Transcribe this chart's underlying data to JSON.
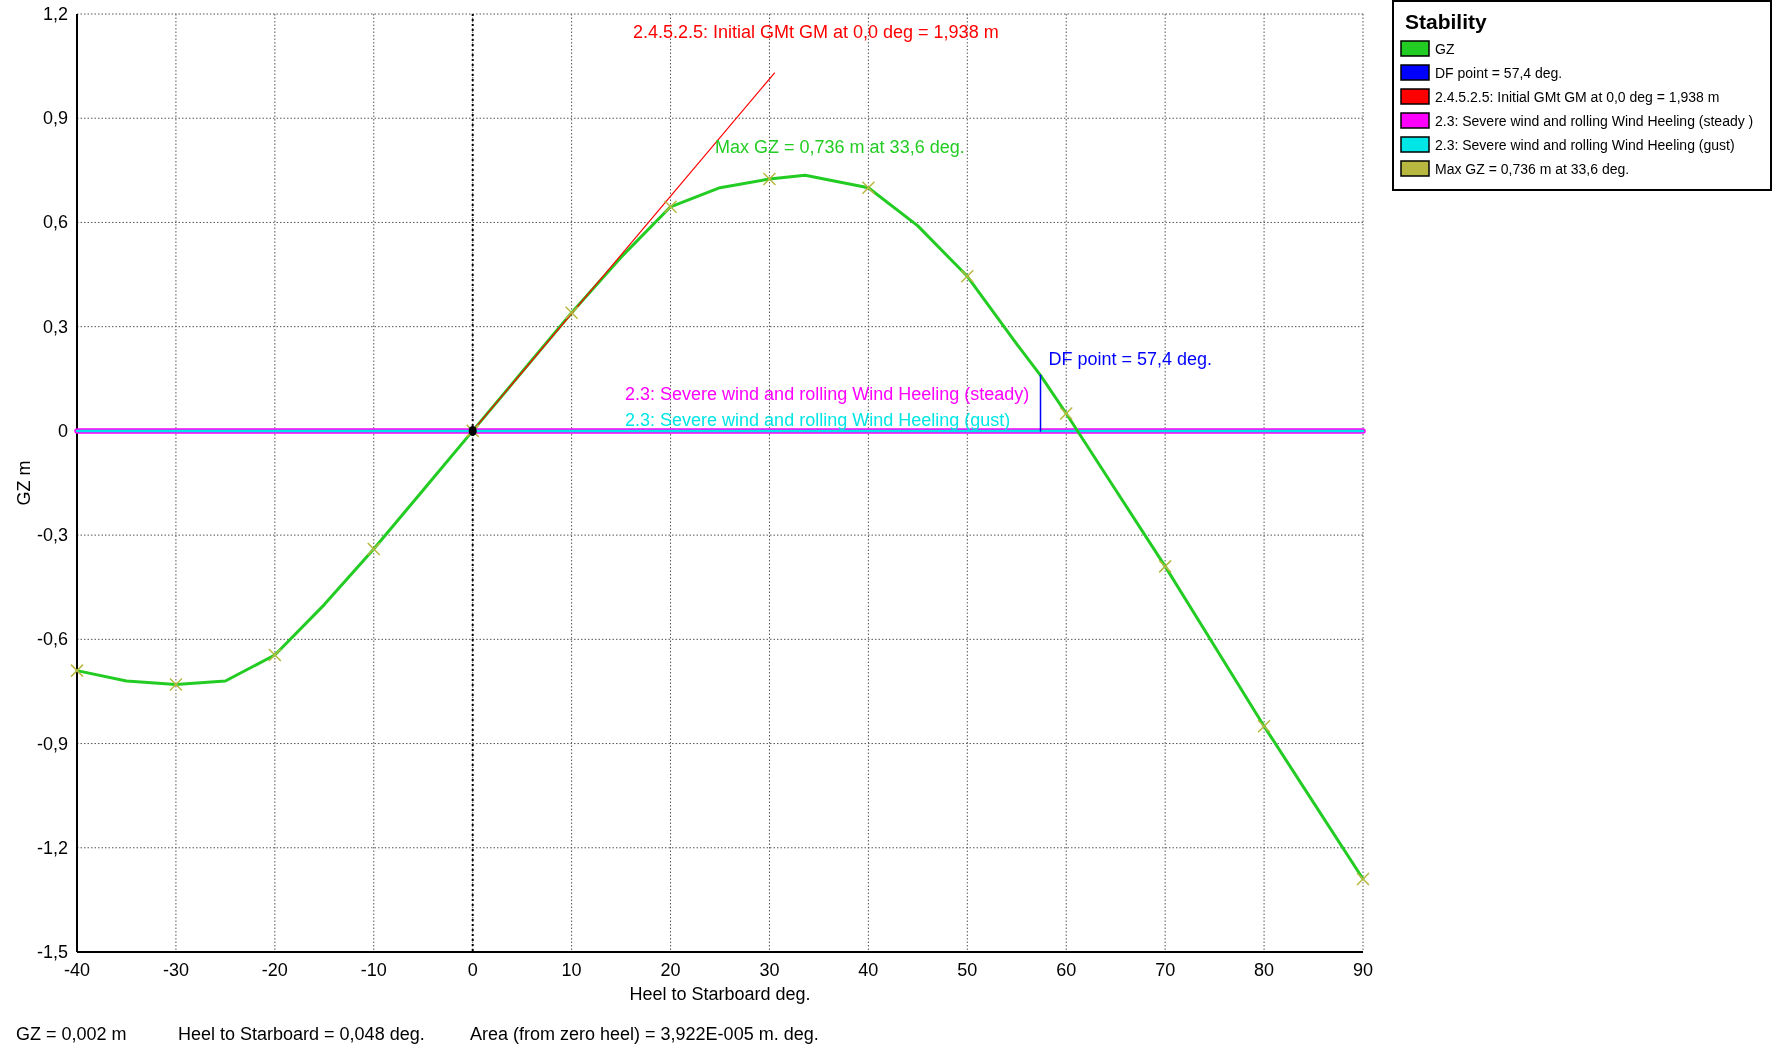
{
  "chart_data": {
    "type": "line",
    "xlabel": "Heel to Starboard   deg.",
    "ylabel": "GZ  m",
    "legend_title": "Stability",
    "xlim": [
      -40,
      90
    ],
    "xticks": [
      -40,
      -30,
      -20,
      -10,
      0,
      10,
      20,
      30,
      40,
      50,
      60,
      70,
      80,
      90
    ],
    "ylim": [
      -1.5,
      1.2
    ],
    "yticks": [
      {
        "value": -1.5,
        "label": "-1,5"
      },
      {
        "value": -1.2,
        "label": "-1,2"
      },
      {
        "value": -0.9,
        "label": "-0,9"
      },
      {
        "value": -0.6,
        "label": "-0,6"
      },
      {
        "value": -0.3,
        "label": "-0,3"
      },
      0,
      {
        "value": 0.3,
        "label": "0,3"
      },
      {
        "value": 0.6,
        "label": "0,6"
      },
      {
        "value": 0.9,
        "label": "0,9"
      },
      {
        "value": 1.2,
        "label": "1,2"
      }
    ],
    "grid": true,
    "legend": "top right",
    "series": [
      {
        "name": "2.3: Severe wind and rolling Wind Heeling (steady )",
        "type": "line",
        "color": "#ff00ff",
        "x": [
          -40,
          90
        ],
        "values": [
          0,
          0
        ]
      },
      {
        "name": "2.3: Severe wind and rolling Wind Heeling (gust)",
        "type": "line",
        "color": "#00e5e5",
        "x": [
          -40,
          90
        ],
        "values": [
          0,
          0
        ]
      },
      {
        "name": "GZ",
        "type": "line",
        "color": "#22cc22",
        "x": [
          -40,
          -35,
          -30,
          -25,
          -20,
          -15,
          -10,
          -5,
          0,
          5,
          10,
          15,
          20,
          25,
          30,
          33.6,
          40,
          45,
          50,
          55,
          57.4,
          60,
          65,
          70,
          75,
          80,
          85,
          90
        ],
        "values": [
          -0.69,
          -0.72,
          -0.73,
          -0.72,
          -0.645,
          -0.5,
          -0.34,
          -0.17,
          0,
          0.17,
          0.34,
          0.5,
          0.645,
          0.7,
          0.725,
          0.736,
          0.7,
          0.59,
          0.445,
          0.25,
          0.16,
          0.05,
          -0.17,
          -0.39,
          -0.62,
          -0.85,
          -1.07,
          -1.29
        ]
      },
      {
        "name": "DF point = 57,4 deg.",
        "type": "line",
        "color": "#0000ff",
        "x": [
          57.4,
          57.4
        ],
        "values": [
          0,
          0.16
        ]
      },
      {
        "name": "2.4.5.2.5: Initial GMt GM at 0,0 deg = 1,938 m",
        "type": "line",
        "color": "#ff0000",
        "x": [
          0,
          30.5
        ],
        "values": [
          0,
          1.03
        ]
      },
      {
        "name": "Max GZ = 0,736 m at 33,6 deg.",
        "type": "scatter",
        "marker": "cross",
        "color": "#b8b840",
        "x": [
          -40,
          -30,
          -20,
          -10,
          0,
          10,
          20,
          30,
          40,
          50,
          60,
          70,
          80,
          90
        ],
        "values": [
          -0.69,
          -0.73,
          -0.645,
          -0.34,
          0,
          0.34,
          0.645,
          0.725,
          0.7,
          0.445,
          0.05,
          -0.39,
          -0.85,
          -1.29
        ]
      },
      {
        "type": "scatter",
        "marker": "circle",
        "color": "#000000",
        "x": [
          0
        ],
        "values": [
          0
        ]
      }
    ],
    "ref_lines": [
      {
        "axis": "x",
        "value": 0,
        "color": "#000000",
        "line_style": "dotted"
      }
    ],
    "annotations": [
      "2.4.5.2.5: Initial GMt GM at 0,0 deg = 1,938 m",
      "Max GZ = 0,736 m at 33,6 deg.",
      "DF point = 57,4 deg.",
      "2.3: Severe wind and rolling Wind Heeling (steady)",
      "2.3: Severe wind and rolling Wind Heeling (gust)",
      "GZ =  0,002 m",
      "Heel to Starboard =  0,048  deg.",
      "Area (from zero heel) = 3,922E-005 m. deg."
    ]
  }
}
